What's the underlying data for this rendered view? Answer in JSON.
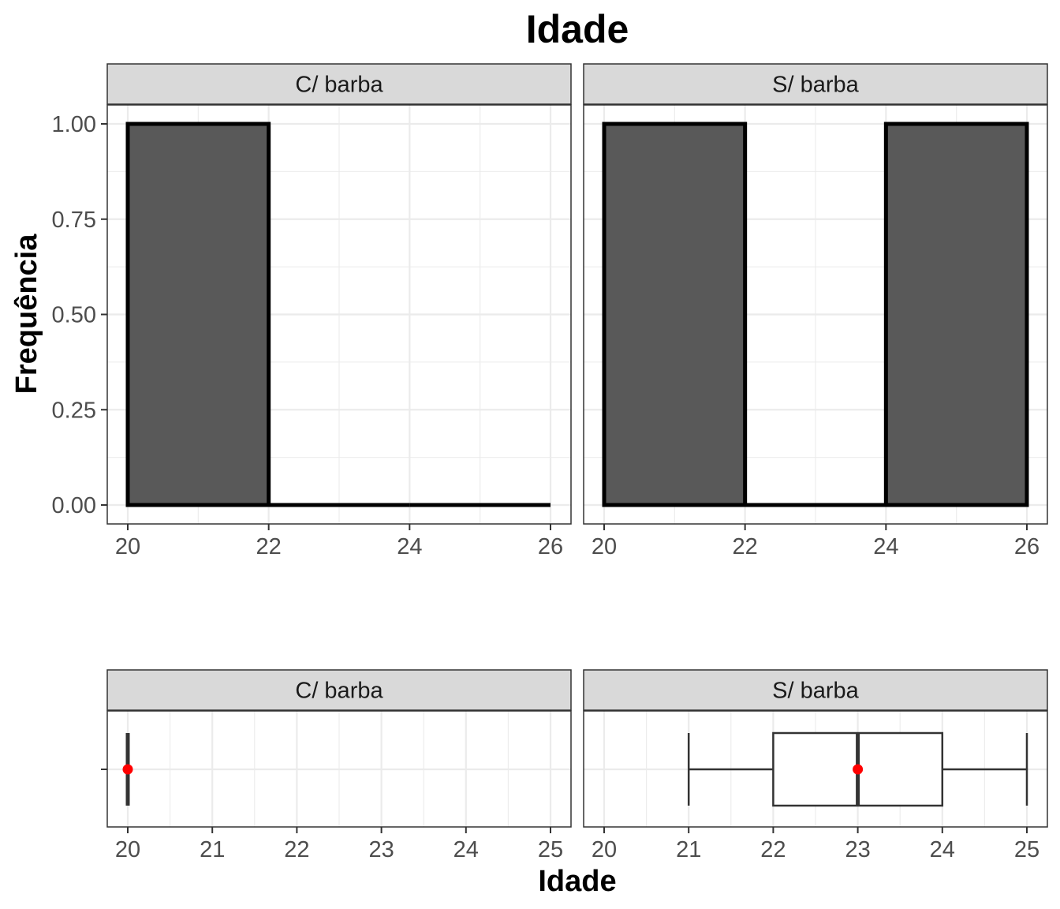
{
  "title": "Idade",
  "chart_data": [
    {
      "type": "bar",
      "panel": "C/ barba",
      "ylabel": "Frequência",
      "xlabel": "",
      "bins": [
        [
          20,
          22
        ],
        [
          22,
          24
        ],
        [
          24,
          26
        ]
      ],
      "values": [
        1,
        0,
        0
      ],
      "xlim": [
        20,
        26
      ],
      "ylim": [
        0,
        1
      ],
      "x_ticks": [
        "20",
        "22",
        "24",
        "26"
      ],
      "y_ticks": [
        "0.00",
        "0.25",
        "0.50",
        "0.75",
        "1.00"
      ],
      "fill": "#595959",
      "outline": "#000000"
    },
    {
      "type": "bar",
      "panel": "S/ barba",
      "ylabel": "Frequência",
      "xlabel": "",
      "bins": [
        [
          20,
          22
        ],
        [
          22,
          24
        ],
        [
          24,
          26
        ]
      ],
      "values": [
        1,
        0,
        1
      ],
      "xlim": [
        20,
        26
      ],
      "ylim": [
        0,
        1
      ],
      "x_ticks": [
        "20",
        "22",
        "24",
        "26"
      ],
      "y_ticks": [
        "0.00",
        "0.25",
        "0.50",
        "0.75",
        "1.00"
      ],
      "fill": "#595959",
      "outline": "#000000"
    },
    {
      "type": "boxplot",
      "panel": "C/ barba",
      "xlabel": "Idade",
      "stats": {
        "min": 20,
        "q1": 20,
        "median": 20,
        "q3": 20,
        "max": 20,
        "mean": 20
      },
      "xlim": [
        20,
        25
      ],
      "x_ticks": [
        "20",
        "21",
        "22",
        "23",
        "24",
        "25"
      ],
      "mean_color": "#ff0000"
    },
    {
      "type": "boxplot",
      "panel": "S/ barba",
      "xlabel": "Idade",
      "stats": {
        "min": 21,
        "q1": 22,
        "median": 23,
        "q3": 24,
        "max": 25,
        "mean": 23
      },
      "xlim": [
        20,
        25
      ],
      "x_ticks": [
        "20",
        "21",
        "22",
        "23",
        "24",
        "25"
      ],
      "mean_color": "#ff0000"
    }
  ]
}
